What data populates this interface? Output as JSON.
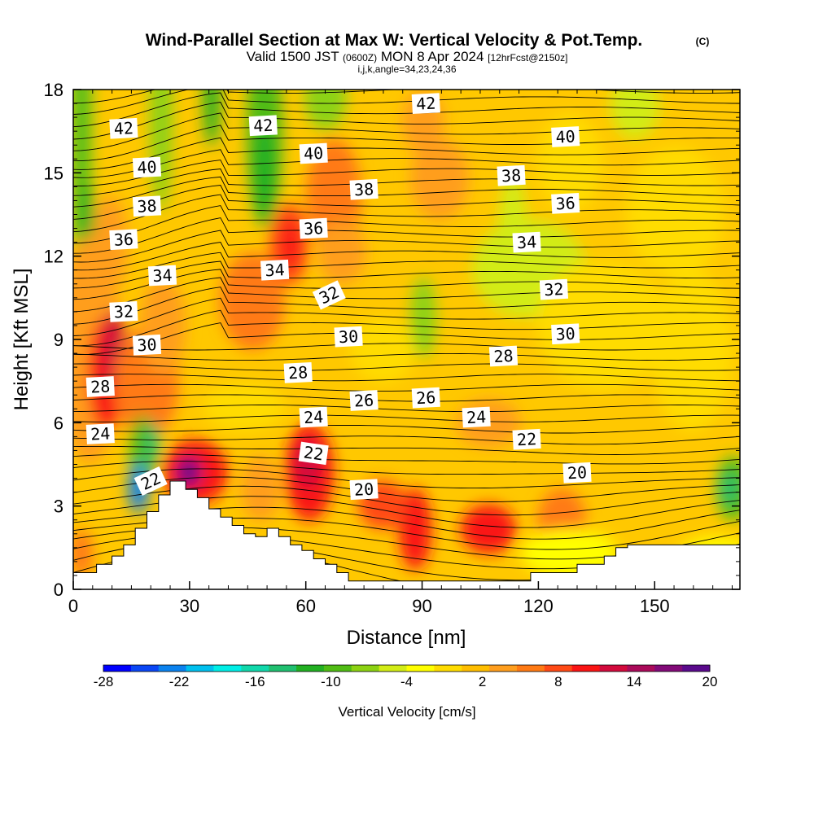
{
  "chart_data": {
    "type": "heatmap",
    "title": "Wind-Parallel Section at Max W: Vertical Velocity & Pot.Temp.",
    "title_mark": "(C)",
    "subtitle_main": "Valid 1500 JST",
    "subtitle_z": "(0600Z)",
    "subtitle_date": "MON 8 Apr 2024",
    "subtitle_fcst": "[12hrFcst@2150z]",
    "subtitle2": "i,j,k,angle=34,23,24,36",
    "xlabel": "Distance [nm]",
    "ylabel": "Height [Kft MSL]",
    "xlim": [
      0,
      172
    ],
    "ylim": [
      0,
      18
    ],
    "x_ticks": [
      0,
      30,
      60,
      90,
      120,
      150
    ],
    "y_ticks": [
      0,
      3,
      6,
      9,
      12,
      15,
      18
    ],
    "colorbar": {
      "label": "Vertical Velocity [cm/s]",
      "tick_labels": [
        "-28",
        "-22",
        "-16",
        "-10",
        "-4",
        "2",
        "8",
        "14",
        "20"
      ],
      "colors": [
        "#0000ff",
        "#0a46f5",
        "#0b82ee",
        "#00c0ee",
        "#00eee6",
        "#11d8ab",
        "#20c070",
        "#22b022",
        "#50bc14",
        "#8cd212",
        "#d2ec16",
        "#ffff00",
        "#ffdc00",
        "#ffbe00",
        "#ff9e1e",
        "#ff7a14",
        "#ff4a16",
        "#fa1414",
        "#d20a3c",
        "#aa0a5a",
        "#820a78",
        "#5a0a8c"
      ]
    },
    "theta_contour_labels": [
      {
        "v": "42",
        "x": 13,
        "y": 16.6
      },
      {
        "v": "42",
        "x": 49,
        "y": 16.7
      },
      {
        "v": "42",
        "x": 91,
        "y": 17.5
      },
      {
        "v": "40",
        "x": 19,
        "y": 15.2
      },
      {
        "v": "40",
        "x": 62,
        "y": 15.7
      },
      {
        "v": "40",
        "x": 127,
        "y": 16.3
      },
      {
        "v": "38",
        "x": 19,
        "y": 13.8
      },
      {
        "v": "38",
        "x": 75,
        "y": 14.4
      },
      {
        "v": "38",
        "x": 113,
        "y": 14.9
      },
      {
        "v": "36",
        "x": 13,
        "y": 12.6
      },
      {
        "v": "36",
        "x": 62,
        "y": 13.0
      },
      {
        "v": "36",
        "x": 127,
        "y": 13.9
      },
      {
        "v": "34",
        "x": 23,
        "y": 11.3
      },
      {
        "v": "34",
        "x": 52,
        "y": 11.5
      },
      {
        "v": "34",
        "x": 117,
        "y": 12.5
      },
      {
        "v": "32",
        "x": 13,
        "y": 10.0
      },
      {
        "v": "32",
        "x": 66,
        "y": 10.6
      },
      {
        "v": "32",
        "x": 124,
        "y": 10.8
      },
      {
        "v": "30",
        "x": 19,
        "y": 8.8
      },
      {
        "v": "30",
        "x": 71,
        "y": 9.1
      },
      {
        "v": "30",
        "x": 127,
        "y": 9.2
      },
      {
        "v": "28",
        "x": 7,
        "y": 7.3
      },
      {
        "v": "28",
        "x": 58,
        "y": 7.8
      },
      {
        "v": "28",
        "x": 111,
        "y": 8.4
      },
      {
        "v": "26",
        "x": 75,
        "y": 6.8
      },
      {
        "v": "26",
        "x": 91,
        "y": 6.9
      },
      {
        "v": "24",
        "x": 7,
        "y": 5.6
      },
      {
        "v": "24",
        "x": 62,
        "y": 6.2
      },
      {
        "v": "24",
        "x": 104,
        "y": 6.2
      },
      {
        "v": "22",
        "x": 20,
        "y": 3.9
      },
      {
        "v": "22",
        "x": 62,
        "y": 4.9
      },
      {
        "v": "22",
        "x": 117,
        "y": 5.4
      },
      {
        "v": "20",
        "x": 75,
        "y": 3.6
      },
      {
        "v": "20",
        "x": 130,
        "y": 4.2
      }
    ],
    "terrain": [
      [
        0,
        0.6
      ],
      [
        6,
        0.6
      ],
      [
        6,
        0.9
      ],
      [
        10,
        0.9
      ],
      [
        10,
        1.2
      ],
      [
        13,
        1.2
      ],
      [
        13,
        1.6
      ],
      [
        16,
        1.6
      ],
      [
        16,
        2.2
      ],
      [
        19,
        2.2
      ],
      [
        19,
        2.8
      ],
      [
        22,
        2.8
      ],
      [
        22,
        3.4
      ],
      [
        25,
        3.4
      ],
      [
        25,
        3.9
      ],
      [
        29,
        3.9
      ],
      [
        29,
        3.6
      ],
      [
        32,
        3.6
      ],
      [
        32,
        3.3
      ],
      [
        35,
        3.3
      ],
      [
        35,
        2.9
      ],
      [
        38,
        2.9
      ],
      [
        38,
        2.6
      ],
      [
        41,
        2.6
      ],
      [
        41,
        2.3
      ],
      [
        44,
        2.3
      ],
      [
        44,
        2.0
      ],
      [
        47,
        2.0
      ],
      [
        47,
        1.9
      ],
      [
        50,
        1.9
      ],
      [
        50,
        2.2
      ],
      [
        53,
        2.2
      ],
      [
        53,
        1.9
      ],
      [
        56,
        1.9
      ],
      [
        56,
        1.6
      ],
      [
        59,
        1.6
      ],
      [
        59,
        1.4
      ],
      [
        62,
        1.4
      ],
      [
        62,
        1.1
      ],
      [
        65,
        1.1
      ],
      [
        65,
        0.9
      ],
      [
        68,
        0.9
      ],
      [
        68,
        0.6
      ],
      [
        71,
        0.6
      ],
      [
        71,
        0.3
      ],
      [
        75,
        0.3
      ],
      [
        75,
        0.3
      ],
      [
        110,
        0.3
      ],
      [
        110,
        0.3
      ],
      [
        118,
        0.3
      ],
      [
        118,
        0.6
      ],
      [
        130,
        0.6
      ],
      [
        130,
        0.9
      ],
      [
        137,
        0.9
      ],
      [
        137,
        1.2
      ],
      [
        140,
        1.2
      ],
      [
        140,
        1.5
      ],
      [
        143,
        1.5
      ],
      [
        143,
        1.6
      ],
      [
        172,
        1.6
      ]
    ]
  }
}
